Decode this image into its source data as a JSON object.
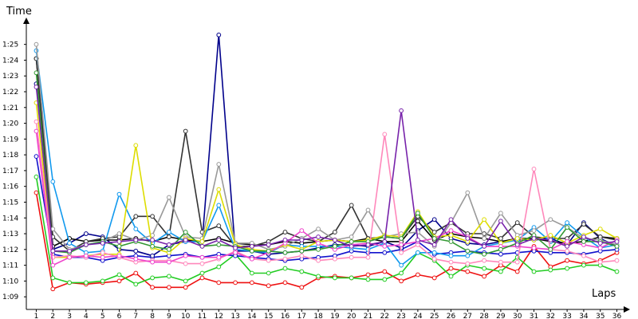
{
  "chart_data": {
    "type": "line",
    "xlabel": "Laps",
    "ylabel": "Time",
    "x": [
      1,
      2,
      3,
      4,
      5,
      6,
      7,
      8,
      9,
      10,
      11,
      12,
      13,
      14,
      15,
      16,
      17,
      18,
      19,
      20,
      21,
      22,
      23,
      24,
      25,
      26,
      27,
      28,
      29,
      30,
      31,
      32,
      33,
      34,
      35,
      36
    ],
    "x_ticks": [
      "1",
      "2",
      "3",
      "4",
      "5",
      "6",
      "7",
      "8",
      "9",
      "10",
      "11",
      "12",
      "13",
      "14",
      "15",
      "16",
      "17",
      "18",
      "19",
      "20",
      "21",
      "22",
      "23",
      "24",
      "25",
      "26",
      "27",
      "28",
      "29",
      "30",
      "31",
      "32",
      "33",
      "34",
      "35",
      "36"
    ],
    "y_ticks": [
      {
        "value": 69,
        "label": "1:09"
      },
      {
        "value": 70,
        "label": "1:10"
      },
      {
        "value": 71,
        "label": "1:11"
      },
      {
        "value": 72,
        "label": "1:12"
      },
      {
        "value": 73,
        "label": "1:13"
      },
      {
        "value": 74,
        "label": "1:14"
      },
      {
        "value": 75,
        "label": "1:15"
      },
      {
        "value": 76,
        "label": "1:16"
      },
      {
        "value": 77,
        "label": "1:17"
      },
      {
        "value": 78,
        "label": "1:18"
      },
      {
        "value": 79,
        "label": "1:19"
      },
      {
        "value": 80,
        "label": "1:20"
      },
      {
        "value": 81,
        "label": "1:21"
      },
      {
        "value": 82,
        "label": "1:22"
      },
      {
        "value": 83,
        "label": "1:23"
      },
      {
        "value": 84,
        "label": "1:24"
      },
      {
        "value": 85,
        "label": "1:25"
      }
    ],
    "ylim": [
      68.2,
      86.5
    ],
    "xlim": [
      0.4,
      36.6
    ],
    "grid": false,
    "legend": "none",
    "series": [
      {
        "color": "#ee1111",
        "values": [
          75.6,
          69.5,
          69.9,
          69.8,
          69.9,
          70.0,
          70.5,
          69.6,
          69.6,
          69.6,
          70.2,
          69.9,
          69.9,
          69.9,
          69.7,
          69.9,
          69.6,
          70.2,
          70.3,
          70.2,
          70.4,
          70.6,
          70.0,
          70.4,
          70.2,
          70.8,
          70.6,
          70.3,
          71.0,
          70.6,
          72.2,
          70.9,
          71.3,
          71.1,
          71.3,
          71.8
        ]
      },
      {
        "color": "#22cc22",
        "values": [
          76.6,
          70.2,
          69.9,
          69.9,
          70.0,
          70.4,
          69.8,
          70.2,
          70.3,
          70.0,
          70.5,
          70.9,
          71.7,
          70.5,
          70.5,
          70.8,
          70.6,
          70.3,
          70.2,
          70.2,
          70.1,
          70.1,
          70.5,
          71.8,
          71.3,
          70.3,
          71.0,
          70.8,
          70.6,
          71.5,
          70.6,
          70.7,
          70.8,
          71.0,
          71.0,
          70.6
        ]
      },
      {
        "color": "#1111cc",
        "values": [
          77.9,
          71.7,
          71.5,
          71.5,
          71.3,
          71.5,
          71.6,
          71.5,
          71.6,
          71.7,
          71.5,
          71.7,
          71.6,
          71.5,
          71.4,
          71.3,
          71.4,
          71.5,
          71.6,
          71.9,
          71.8,
          71.8,
          72.0,
          72.5,
          71.7,
          71.8,
          71.9,
          71.8,
          71.7,
          71.8,
          71.9,
          71.8,
          71.8,
          71.7,
          71.9,
          72.0
        ]
      },
      {
        "color": "#00008b",
        "values": [
          82.5,
          72.0,
          72.4,
          73.0,
          72.8,
          72.0,
          71.9,
          71.6,
          72.3,
          72.5,
          72.5,
          85.6,
          71.9,
          71.9,
          71.7,
          71.8,
          71.9,
          72.1,
          72.3,
          72.3,
          72.2,
          72.5,
          72.1,
          73.2,
          73.9,
          72.7,
          72.4,
          72.3,
          72.5,
          72.6,
          72.6,
          72.7,
          72.3,
          73.7,
          72.7,
          72.2
        ]
      },
      {
        "color": "#000000",
        "values": [
          84.1,
          72.2,
          72.7,
          72.5,
          72.6,
          72.6,
          72.7,
          72.5,
          72.8,
          72.6,
          72.5,
          72.7,
          72.4,
          72.3,
          72.3,
          72.5,
          72.4,
          72.5,
          72.6,
          72.5,
          72.7,
          72.5,
          72.5,
          73.8,
          72.6,
          73.0,
          72.8,
          72.7,
          72.5,
          72.7,
          72.7,
          72.5,
          72.4,
          72.5,
          72.8,
          72.7
        ]
      },
      {
        "color": "#333333",
        "values": [
          84.1,
          72.8,
          71.9,
          72.5,
          72.7,
          72.8,
          74.1,
          74.1,
          72.8,
          79.5,
          73.1,
          73.5,
          72.2,
          72.2,
          72.5,
          73.1,
          72.7,
          72.5,
          73.1,
          74.8,
          72.7,
          72.8,
          72.7,
          74.1,
          73.1,
          73.7,
          73.0,
          73.0,
          72.7,
          73.7,
          72.8,
          72.7,
          72.7,
          73.6,
          72.8,
          72.6
        ]
      },
      {
        "color": "#1199ee",
        "values": [
          84.6,
          76.3,
          72.4,
          71.8,
          71.9,
          75.5,
          73.3,
          72.4,
          73.1,
          72.5,
          72.5,
          74.8,
          72.0,
          71.9,
          71.8,
          72.3,
          72.2,
          72.2,
          72.2,
          72.1,
          72.0,
          72.4,
          71.0,
          71.8,
          71.8,
          71.6,
          71.6,
          72.2,
          72.4,
          72.6,
          73.4,
          72.5,
          73.7,
          72.8,
          72.1,
          72.3
        ]
      },
      {
        "color": "#999999",
        "values": [
          85.0,
          73.3,
          72.0,
          72.3,
          72.5,
          73.0,
          72.6,
          72.9,
          75.3,
          72.8,
          72.7,
          77.4,
          72.4,
          72.4,
          72.0,
          72.2,
          72.7,
          73.3,
          72.6,
          72.8,
          74.5,
          72.8,
          73.0,
          73.1,
          72.2,
          73.7,
          75.6,
          72.7,
          74.3,
          72.9,
          73.2,
          73.9,
          73.4,
          72.7,
          72.6,
          72.3
        ]
      },
      {
        "color": "#dddd00",
        "values": [
          81.3,
          71.5,
          71.5,
          71.6,
          71.7,
          71.7,
          78.6,
          72.1,
          71.8,
          72.7,
          72.5,
          75.8,
          72.3,
          72.0,
          71.9,
          72.3,
          72.0,
          72.5,
          72.6,
          72.5,
          72.6,
          72.9,
          72.8,
          74.4,
          72.8,
          72.9,
          72.5,
          73.9,
          72.4,
          72.7,
          72.6,
          72.9,
          72.4,
          72.9,
          73.3,
          72.7
        ]
      },
      {
        "color": "#ff88bb",
        "values": [
          80.1,
          71.5,
          71.6,
          71.5,
          71.8,
          71.5,
          71.2,
          71.3,
          71.3,
          71.1,
          71.1,
          71.4,
          71.9,
          71.4,
          71.3,
          71.4,
          71.6,
          71.3,
          71.4,
          71.5,
          71.5,
          79.3,
          71.8,
          72.3,
          71.4,
          71.2,
          71.1,
          71.3,
          71.2,
          71.2,
          77.1,
          72.0,
          71.9,
          71.6,
          71.2,
          71.3
        ]
      },
      {
        "color": "#ee44cc",
        "values": [
          79.5,
          71.0,
          71.5,
          71.6,
          71.5,
          71.6,
          71.4,
          71.2,
          71.2,
          71.6,
          71.5,
          71.5,
          71.8,
          71.4,
          71.8,
          72.4,
          73.2,
          72.4,
          72.0,
          72.3,
          72.4,
          72.2,
          72.3,
          72.5,
          72.7,
          73.2,
          72.8,
          72.2,
          72.2,
          72.2,
          72.1,
          72.0,
          72.5,
          72.3,
          72.1,
          72.6
        ]
      },
      {
        "color": "#339933",
        "values": [
          83.2,
          71.9,
          71.8,
          72.3,
          72.5,
          72.2,
          72.5,
          72.2,
          72.0,
          73.1,
          72.2,
          72.3,
          72.2,
          71.9,
          71.9,
          71.8,
          71.9,
          72.0,
          72.2,
          72.5,
          72.5,
          72.8,
          72.7,
          74.3,
          72.7,
          72.5,
          71.9,
          71.7,
          72.0,
          72.4,
          72.9,
          72.0,
          73.4,
          72.5,
          72.5,
          72.2
        ]
      },
      {
        "color": "#7722aa",
        "values": [
          82.3,
          71.9,
          71.9,
          72.3,
          72.4,
          72.5,
          72.6,
          72.6,
          72.3,
          72.6,
          72.2,
          72.6,
          72.1,
          72.2,
          72.3,
          72.6,
          72.6,
          72.8,
          72.6,
          72.2,
          72.3,
          72.5,
          80.8,
          72.6,
          72.3,
          73.9,
          72.7,
          72.2,
          73.8,
          72.3,
          72.7,
          72.6,
          72.2,
          72.8,
          72.4,
          72.5
        ]
      }
    ]
  }
}
